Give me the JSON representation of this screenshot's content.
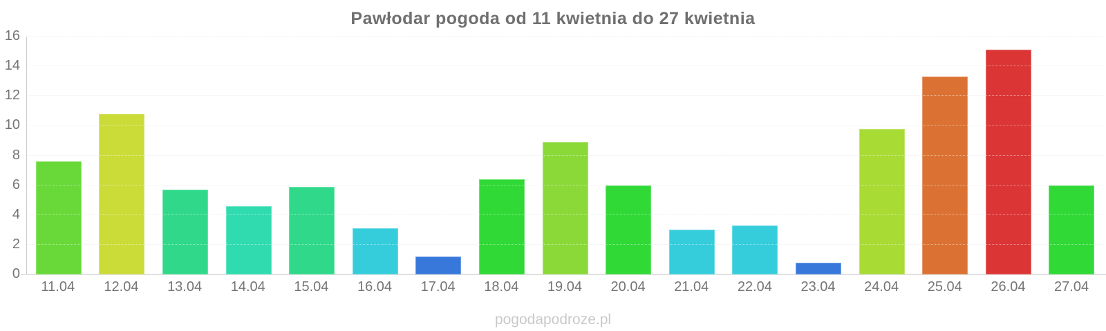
{
  "title": "Pawłodar pogoda od 11 kwietnia do 27 kwietnia",
  "watermark": "pogodapodroze.pl",
  "colors": {
    "background": "#ffffff",
    "title_text": "#6f6f6f",
    "axis_label_text": "#757575",
    "gridline": "#f4f4f4",
    "axis_line": "#cccccc",
    "baseline": "#e0e0e0",
    "watermark_text": "#c9c9c9"
  },
  "chart_data": {
    "type": "bar",
    "title": "Pawłodar pogoda od 11 kwietnia do 27 kwietnia",
    "categories": [
      "11.04",
      "12.04",
      "13.04",
      "14.04",
      "15.04",
      "16.04",
      "17.04",
      "18.04",
      "19.04",
      "20.04",
      "21.04",
      "22.04",
      "23.04",
      "24.04",
      "25.04",
      "26.04",
      "27.04"
    ],
    "values": [
      7.6,
      10.8,
      5.7,
      4.6,
      5.9,
      3.1,
      1.2,
      6.4,
      8.9,
      6.0,
      3.0,
      3.3,
      0.8,
      9.8,
      13.3,
      15.1,
      6.0
    ],
    "bar_colors": [
      "#68D939",
      "#CBDC39",
      "#30D98A",
      "#30DBAF",
      "#30D98A",
      "#35CDDB",
      "#3878DB",
      "#30D936",
      "#8BD939",
      "#30D936",
      "#35CDDB",
      "#35CDDB",
      "#3878DB",
      "#A9DB35",
      "#DB7233",
      "#DB3535",
      "#30D936"
    ],
    "xlabel": "",
    "ylabel": "",
    "ylim": [
      0,
      16
    ],
    "yticks": [
      0,
      2,
      4,
      6,
      8,
      10,
      12,
      14,
      16
    ],
    "grid": true,
    "legend": false
  }
}
